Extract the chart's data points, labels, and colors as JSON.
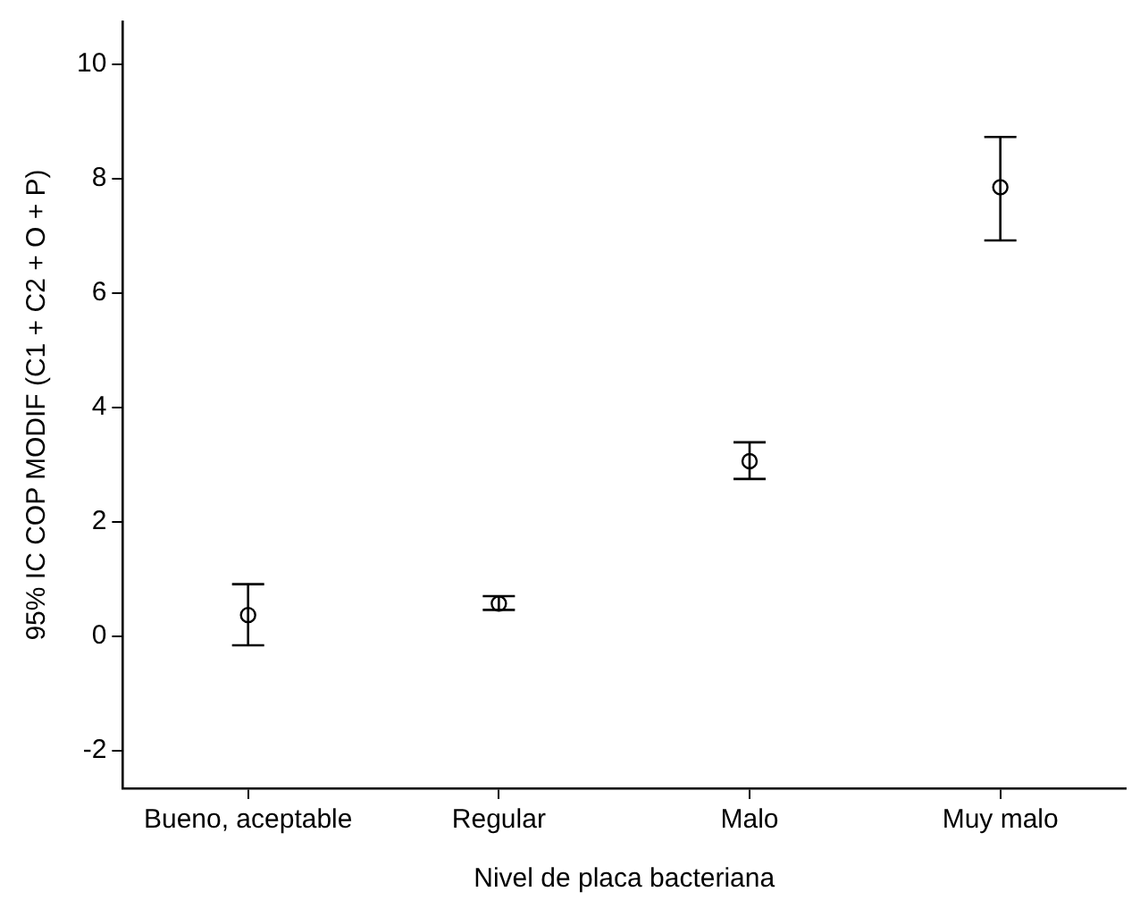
{
  "chart_data": {
    "type": "scatter",
    "xlabel": "Nivel de placa bacteriana",
    "ylabel": "95% IC COP MODIF (C1 + C2 + O + P)",
    "categories": [
      "Bueno, aceptable",
      "Regular",
      "Malo",
      "Muy malo"
    ],
    "values": [
      0.37,
      0.57,
      3.06,
      7.85
    ],
    "errors": [
      [
        -0.16,
        0.91
      ],
      [
        0.46,
        0.7
      ],
      [
        2.75,
        3.39
      ],
      [
        6.92,
        8.73
      ]
    ],
    "color": "#000000",
    "marker": "circle",
    "ylim": [
      -2.66,
      10.75
    ],
    "yticks": [
      -2,
      0,
      2,
      4,
      6,
      8,
      10
    ],
    "grid": false,
    "legend": false
  }
}
